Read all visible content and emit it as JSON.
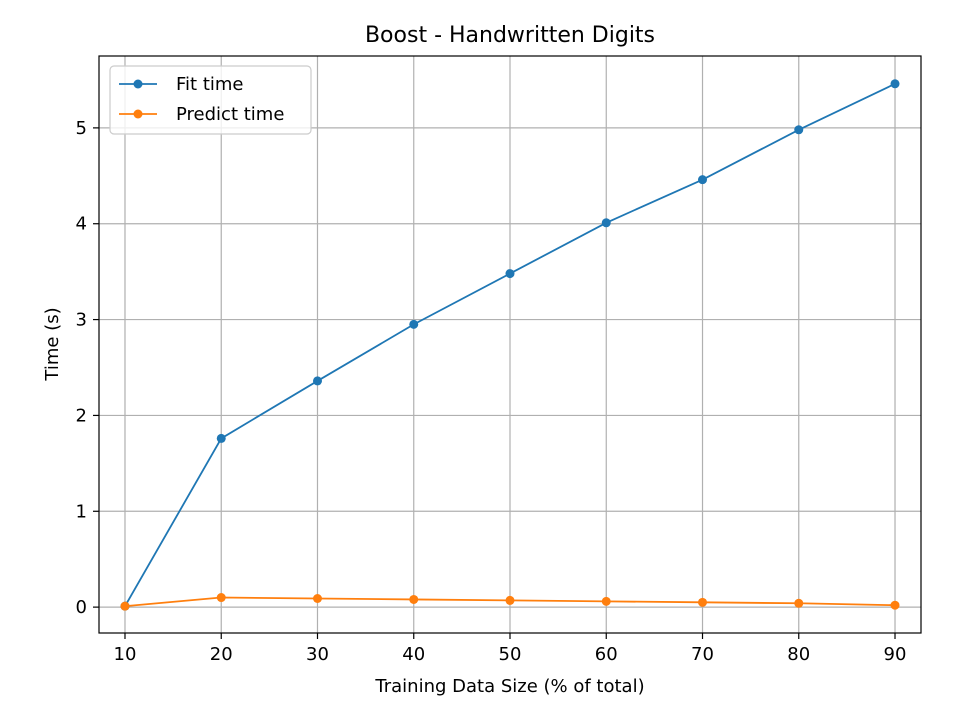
{
  "chart_data": {
    "type": "line",
    "title": "Boost - Handwritten Digits",
    "xlabel": "Training Data Size (% of total)",
    "ylabel": "Time (s)",
    "x": [
      10,
      20,
      30,
      40,
      50,
      60,
      70,
      80,
      90
    ],
    "xlim": [
      7.3,
      92.7
    ],
    "ylim": [
      -0.27,
      5.75
    ],
    "xticks": [
      10,
      20,
      30,
      40,
      50,
      60,
      70,
      80,
      90
    ],
    "yticks": [
      0,
      1,
      2,
      3,
      4,
      5
    ],
    "grid": true,
    "legend": "top-left",
    "series": [
      {
        "name": "Fit time",
        "color": "#1f77b4",
        "values": [
          0.01,
          1.76,
          2.36,
          2.95,
          3.48,
          4.01,
          4.46,
          4.98,
          5.46
        ]
      },
      {
        "name": "Predict time",
        "color": "#ff7f0e",
        "values": [
          0.01,
          0.1,
          0.09,
          0.08,
          0.07,
          0.06,
          0.05,
          0.04,
          0.02
        ]
      }
    ]
  }
}
